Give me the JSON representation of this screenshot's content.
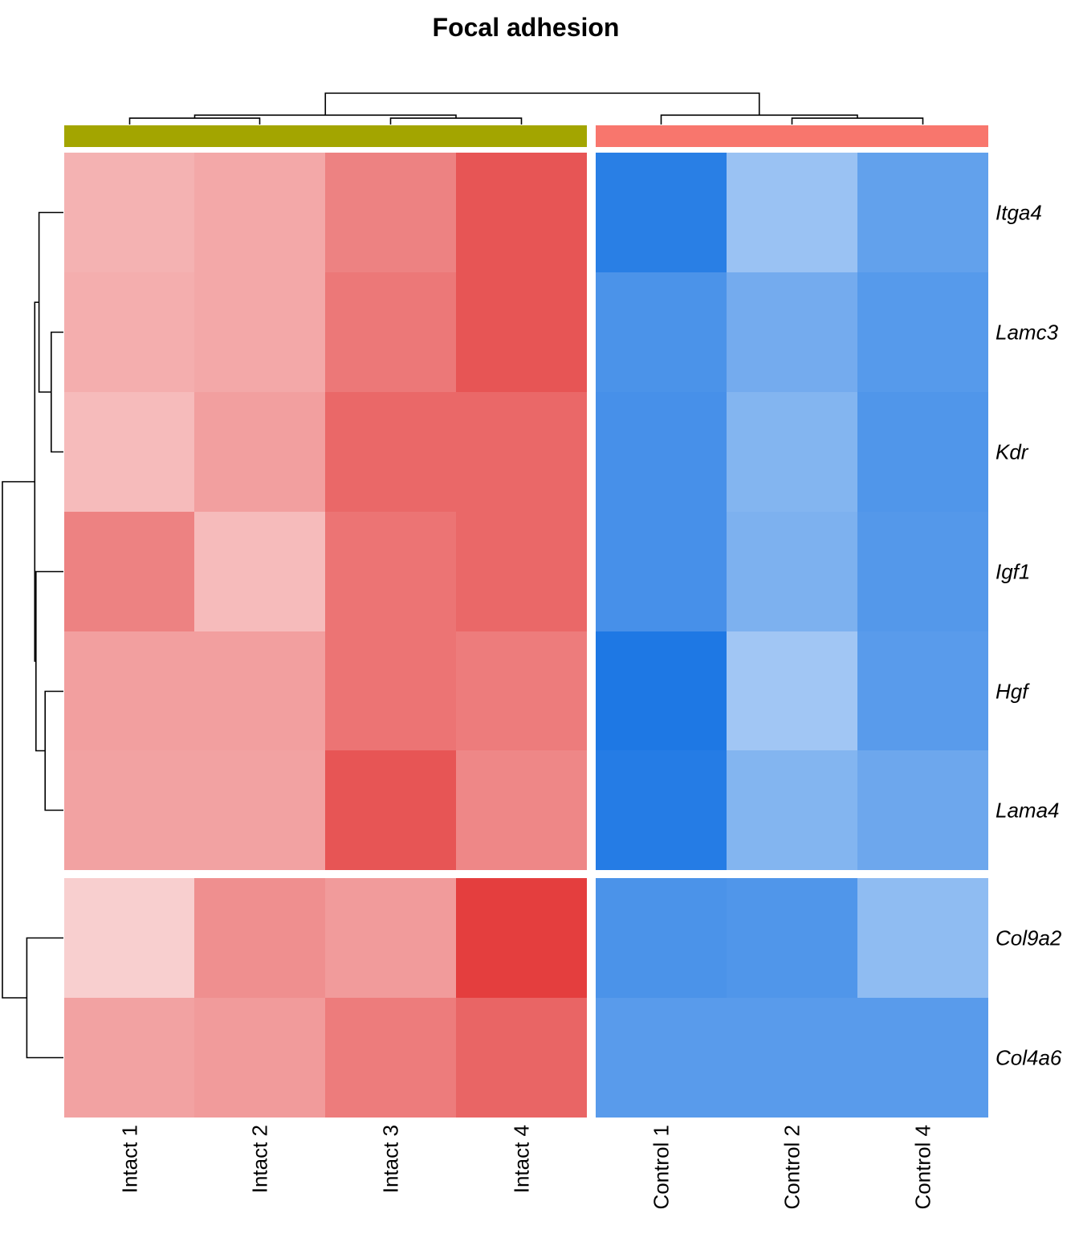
{
  "chart_data": {
    "type": "heatmap",
    "title": "Focal adhesion",
    "columns": [
      "Intact 1",
      "Intact 2",
      "Intact 3",
      "Intact 4",
      "Control 1",
      "Control 2",
      "Control 4"
    ],
    "column_groups": [
      {
        "name": "Intact",
        "members": [
          "Intact 1",
          "Intact 2",
          "Intact 3",
          "Intact 4"
        ],
        "color": "#A3A500"
      },
      {
        "name": "Control",
        "members": [
          "Control 1",
          "Control 2",
          "Control 4"
        ],
        "color": "#F8766D"
      }
    ],
    "rows": [
      "Itga4",
      "Lamc3",
      "Kdr",
      "Igf1",
      "Hgf",
      "Lama4",
      "Col9a2",
      "Col4a6"
    ],
    "row_groups": [
      {
        "members": [
          "Itga4",
          "Lamc3",
          "Kdr",
          "Igf1",
          "Hgf",
          "Lama4"
        ]
      },
      {
        "members": [
          "Col9a2",
          "Col4a6"
        ]
      }
    ],
    "values": [
      [
        0.4,
        0.45,
        0.65,
        0.88,
        -0.95,
        -0.45,
        -0.7
      ],
      [
        0.42,
        0.45,
        0.7,
        0.88,
        -0.8,
        -0.62,
        -0.75
      ],
      [
        0.35,
        0.5,
        0.78,
        0.78,
        -0.82,
        -0.55,
        -0.78
      ],
      [
        0.65,
        0.35,
        0.72,
        0.78,
        -0.82,
        -0.58,
        -0.76
      ],
      [
        0.5,
        0.5,
        0.72,
        0.68,
        -1.0,
        -0.42,
        -0.74
      ],
      [
        0.48,
        0.48,
        0.88,
        0.62,
        -0.97,
        -0.55,
        -0.65
      ],
      [
        0.25,
        0.58,
        0.52,
        1.0,
        -0.8,
        -0.78,
        -0.5
      ],
      [
        0.48,
        0.52,
        0.68,
        0.8,
        -0.74,
        -0.74,
        -0.74
      ]
    ],
    "color_scale": {
      "negative": "#1E78E4",
      "zero": "#FFFFFF",
      "positive": "#E43E3E"
    },
    "column_dendrogram": [
      {
        "merge": [
          "Intact 1",
          "Intact 2"
        ],
        "height": 0.1
      },
      {
        "merge": [
          "Intact 3",
          "Intact 4"
        ],
        "height": 0.1
      },
      {
        "merge": [
          "Intact 1|Intact 2",
          "Intact 3|Intact 4"
        ],
        "height": 0.3
      },
      {
        "merge": [
          "Control 2",
          "Control 4"
        ],
        "height": 0.1
      },
      {
        "merge": [
          "Control 1",
          "Control 2|Control 4"
        ],
        "height": 0.3
      },
      {
        "merge": [
          "Intact",
          "Control"
        ],
        "height": 1.0
      }
    ],
    "row_dendrogram": [
      {
        "merge": [
          "Lamc3",
          "Kdr"
        ],
        "height": 0.2
      },
      {
        "merge": [
          "Hgf",
          "Lama4"
        ],
        "height": 0.3
      },
      {
        "merge": [
          "Itga4",
          "Lamc3|Kdr"
        ],
        "height": 0.4
      },
      {
        "merge": [
          "Igf1",
          "Hgf|Lama4"
        ],
        "height": 0.45
      },
      {
        "merge": [
          "Itga4|Lamc3|Kdr",
          "Igf1|Hgf|Lama4"
        ],
        "height": 0.47
      },
      {
        "merge": [
          "Col9a2",
          "Col4a6"
        ],
        "height": 0.6
      },
      {
        "merge": [
          "main",
          "Col9a2|Col4a6"
        ],
        "height": 1.0
      }
    ]
  }
}
